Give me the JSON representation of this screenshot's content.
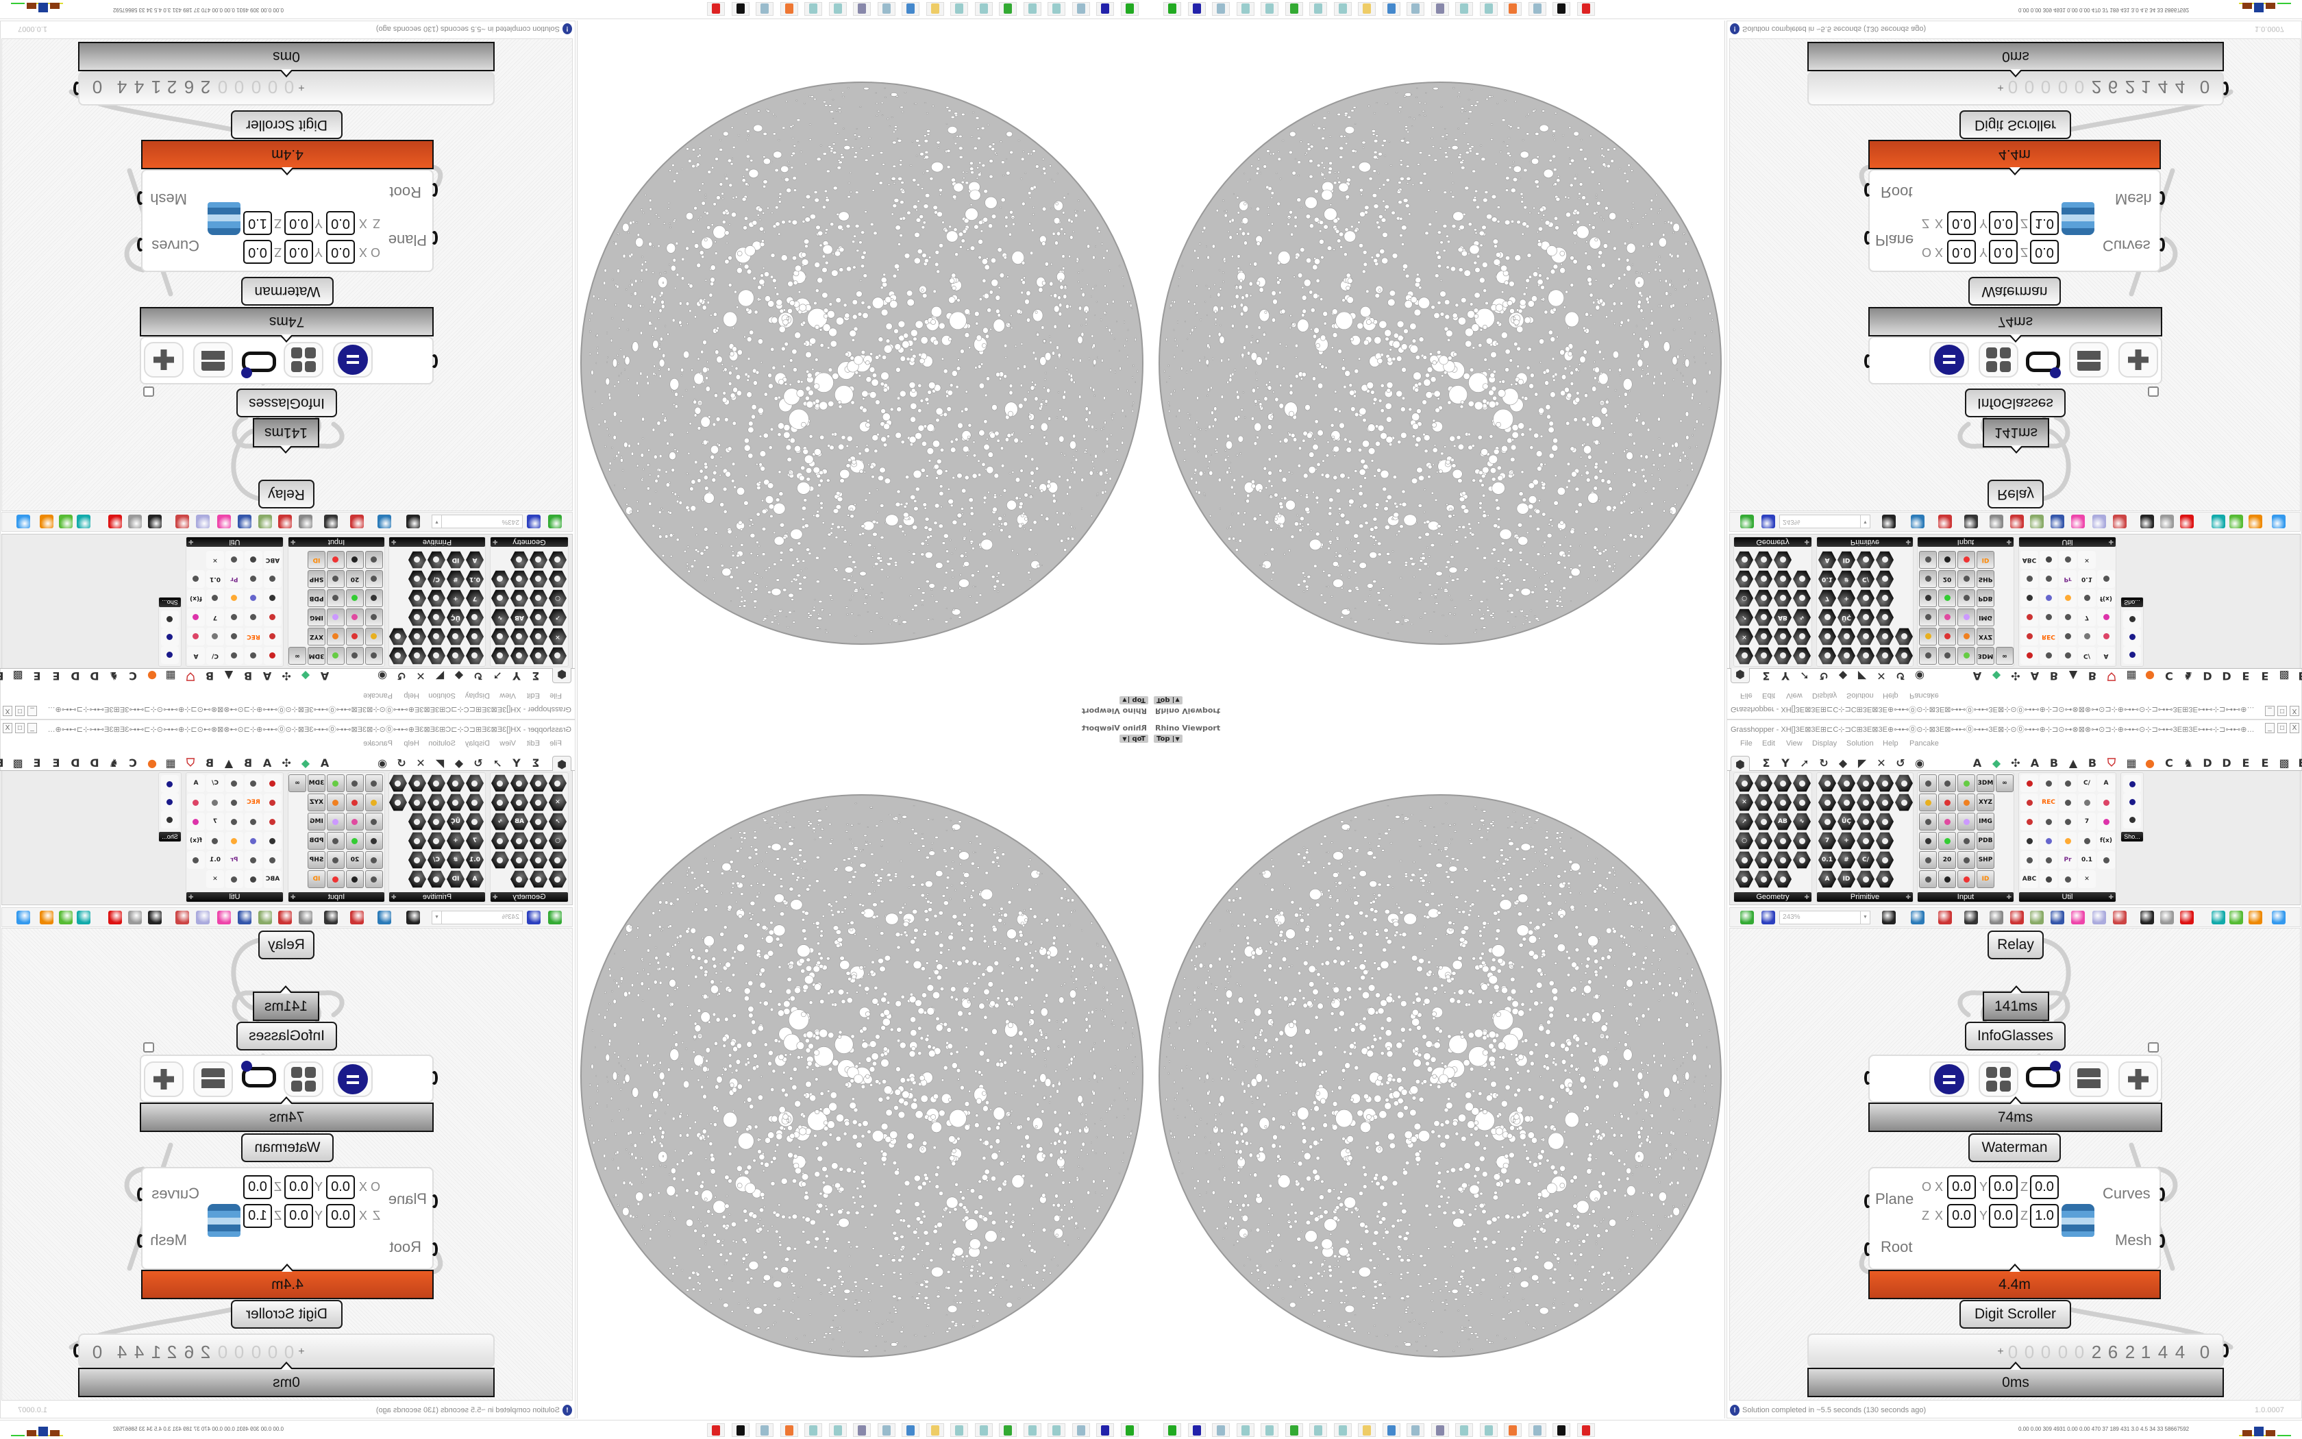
{
  "viewport": {
    "title": "Rhino Viewport",
    "view": "Top"
  },
  "grasshopper": {
    "title": "Grasshopper - XH[]3E⊠3E⊞⊏C⊹⊐C⊞3E⊠3E⊕⊶⊷⓪⊙⊹⊠3E⊠⊶⊷⓪⊶⊷3E⊠⊹⊙⓪⊶⊷⊕⊹⊐⊙⊶⊗⊠⊗⊶⊙⊐⊹⊕⊶⊷⊙⊹⊐⊶⊷3E⊞3E⊶⊷⊹⊐⊶⊷⊕⊹⊐⊙⊶⊗⊠⊗⊶⊙⊐⊹⊕⊶⊷⓪⊙⊹⊠3E⊠⊶⊷⓪...",
    "window_buttons": [
      "_",
      "□",
      "X"
    ],
    "menu": [
      "File",
      "Edit",
      "View",
      "Display",
      "Solution",
      "Help",
      "Pancake"
    ],
    "tabs": [
      {
        "name": "params",
        "glyph": "⬢",
        "selected": true
      },
      {
        "name": "maths",
        "glyph": "Σ"
      },
      {
        "name": "sets",
        "glyph": "Y"
      },
      {
        "name": "vector",
        "glyph": "➚"
      },
      {
        "name": "curve",
        "glyph": "↻"
      },
      {
        "name": "surface",
        "glyph": "◆"
      },
      {
        "name": "mesh",
        "glyph": "◤"
      },
      {
        "name": "intersect",
        "glyph": "✕"
      },
      {
        "name": "transform",
        "glyph": "↺"
      },
      {
        "name": "display",
        "glyph": "◉"
      },
      {
        "name": "addon-a1",
        "glyph": "A"
      },
      {
        "name": "green-gem",
        "glyph": "◆",
        "color": "#3cb878"
      },
      {
        "name": "puzzle",
        "glyph": "✣"
      },
      {
        "name": "addon-a2",
        "glyph": "A"
      },
      {
        "name": "addon-b1",
        "glyph": "B"
      },
      {
        "name": "mountain",
        "glyph": "▲"
      },
      {
        "name": "addon-b2",
        "glyph": "B"
      },
      {
        "name": "shield",
        "glyph": "⛉",
        "color": "#c33"
      },
      {
        "name": "grid",
        "glyph": "▦"
      },
      {
        "name": "orange-circle",
        "glyph": "●",
        "color": "#f07020"
      },
      {
        "name": "addon-c",
        "glyph": "C"
      },
      {
        "name": "rooster",
        "glyph": "♞"
      },
      {
        "name": "addon-d1",
        "glyph": "D"
      },
      {
        "name": "addon-d2",
        "glyph": "D"
      },
      {
        "name": "addon-e1",
        "glyph": "E"
      },
      {
        "name": "addon-e2",
        "glyph": "E"
      },
      {
        "name": "dotted-grid",
        "glyph": "▩"
      },
      {
        "name": "addon-e3",
        "glyph": "E"
      }
    ],
    "panels": [
      {
        "label": "Geometry",
        "style": "hex",
        "cols": 4,
        "icons": [
          {
            "name": "vector"
          },
          {
            "name": "line"
          },
          {
            "name": "point"
          },
          {
            "name": "spiral"
          },
          {
            "name": "delete",
            "text": "✕"
          },
          {
            "name": "plane"
          },
          {
            "name": "box"
          },
          {
            "name": "field"
          },
          {
            "name": "arrow",
            "text": "➚"
          },
          {
            "name": "rhombus"
          },
          {
            "name": "abc-grid",
            "text": "AB"
          },
          {
            "name": "wave",
            "text": "∿"
          },
          {
            "name": "circle",
            "text": "○"
          },
          {
            "name": "cube"
          },
          {
            "name": "group"
          },
          {
            "name": "cluster"
          },
          {
            "name": "brush"
          },
          {
            "name": "mesh"
          },
          {
            "name": "frame"
          },
          {
            "name": "text-shape"
          },
          {
            "name": "ring"
          },
          {
            "name": "sphere"
          },
          {
            "name": "magnet"
          }
        ]
      },
      {
        "label": "Primitive",
        "style": "hex",
        "cols": 5,
        "icons": [
          {
            "name": "boolean"
          },
          {
            "name": "integer"
          },
          {
            "name": "matrix"
          },
          {
            "name": "curve"
          },
          {
            "name": "path"
          },
          {
            "name": "mesh-face"
          },
          {
            "name": "domain"
          },
          {
            "name": "time"
          },
          {
            "name": "surface-param"
          },
          {
            "name": "brep"
          },
          {
            "name": "field-param"
          },
          {
            "name": "ucs",
            "text": "ÜÇ"
          },
          {
            "name": "hatch"
          },
          {
            "name": "pipeline"
          },
          null,
          {
            "name": "number",
            "text": "7"
          },
          {
            "name": "line-param",
            "text": "+"
          },
          {
            "name": "tree"
          },
          {
            "name": "generic"
          },
          null,
          {
            "name": "number-decimal",
            "text": "0.1"
          },
          {
            "name": "grid-param",
            "text": "#"
          },
          {
            "name": "complex",
            "text": "C/"
          },
          {
            "name": "file-path"
          },
          null,
          {
            "name": "text-param",
            "text": "A"
          },
          {
            "name": "guid",
            "text": "ID"
          },
          {
            "name": "sphere-param"
          },
          {
            "name": "shape"
          },
          null
        ]
      },
      {
        "label": "Input",
        "style": "sq",
        "cols": 5,
        "icons": [
          {
            "name": "slider"
          },
          {
            "name": "button"
          },
          {
            "name": "color-swatch",
            "color": "#6c4"
          },
          {
            "name": "import-3dm",
            "text": "3DM"
          },
          {
            "name": "panel",
            "text": "∞"
          },
          {
            "name": "graph",
            "color": "#e8b020"
          },
          {
            "name": "gumball",
            "color": "#d33"
          },
          {
            "name": "t-param",
            "color": "#f08020"
          },
          {
            "name": "xyz",
            "text": "XYZ"
          },
          null,
          {
            "name": "toggle"
          },
          {
            "name": "gradient",
            "color": "#e04aa0"
          },
          {
            "name": "color-wheel",
            "color": "#c9f"
          },
          {
            "name": "image",
            "text": "IMG"
          },
          null,
          {
            "name": "knob",
            "color": "#333"
          },
          {
            "name": "checker",
            "color": "#3c3"
          },
          {
            "name": "graph-mapper"
          },
          {
            "name": "pdb",
            "text": "PDB"
          },
          null,
          {
            "name": "lightning"
          },
          {
            "name": "calendar",
            "text": "20"
          },
          {
            "name": "target"
          },
          {
            "name": "shp",
            "text": "SHP"
          },
          null,
          {
            "name": "value-list"
          },
          {
            "name": "clock",
            "color": "#222"
          },
          {
            "name": "colorbar",
            "color": "#e33"
          },
          {
            "name": "id-tag",
            "text": "ID",
            "color": "#f80"
          }
        ]
      },
      {
        "label": "Util",
        "style": "util",
        "cols": 5,
        "icons": [
          {
            "name": "cherry",
            "color": "#c22"
          },
          {
            "name": "loop",
            "color": "#555"
          },
          {
            "name": "arrow-right"
          },
          {
            "name": "text-c",
            "text": "C/"
          },
          {
            "name": "text-a",
            "text": "A"
          },
          {
            "name": "play",
            "color": "#c33"
          },
          {
            "name": "record",
            "text": "REC",
            "color": "#f60"
          },
          {
            "name": "search"
          },
          {
            "name": "swirl",
            "color": "#777"
          },
          {
            "name": "eraser",
            "color": "#d46"
          },
          {
            "name": "axes",
            "color": "#c33"
          },
          {
            "name": "pencil"
          },
          {
            "name": "timer"
          },
          {
            "name": "number-seven",
            "text": "7"
          },
          {
            "name": "flask",
            "color": "#d3a"
          },
          {
            "name": "tree-image",
            "color": "#333"
          },
          {
            "name": "param-y",
            "color": "#66c"
          },
          {
            "name": "egg",
            "color": "#fa3"
          },
          {
            "name": "wrench"
          },
          {
            "name": "function",
            "text": "f(x)"
          },
          {
            "name": "blob",
            "color": "#555"
          },
          {
            "name": "refresh"
          },
          {
            "name": "premiere",
            "text": "Pr",
            "color": "#7b2d8e"
          },
          {
            "name": "decimal",
            "text": "0.1"
          },
          {
            "name": "palette",
            "color": "#555"
          },
          {
            "name": "abc",
            "text": "ABC"
          },
          {
            "name": "arrow-dark",
            "color": "#444"
          },
          {
            "name": "gauge"
          },
          {
            "name": "close-x",
            "text": "✕"
          }
        ]
      }
    ],
    "show_panel": {
      "label": "Sho...",
      "icons": [
        "infoglasses",
        "infoglasses-alt",
        "presentation"
      ]
    },
    "toolbar": {
      "zoom": "243%",
      "icons": [
        {
          "name": "new-document",
          "color": "#3a3"
        },
        {
          "name": "save",
          "color": "#2b3fbf"
        },
        {
          "name": "zoom-extents",
          "color": "#222"
        },
        {
          "name": "preview-eye",
          "color": "#2a7ab8"
        },
        {
          "name": "sketch-pen",
          "color": "#c33"
        },
        {
          "name": "cluster-io",
          "color": "#333"
        },
        {
          "name": "email",
          "color": "#888"
        },
        {
          "name": "gha",
          "color": "#c33"
        },
        {
          "name": "window",
          "color": "#8a6"
        },
        {
          "name": "search-s",
          "color": "#35a"
        },
        {
          "name": "package",
          "color": "#e4a"
        },
        {
          "name": "bulb",
          "color": "#aad"
        },
        {
          "name": "dna",
          "color": "#c44"
        },
        {
          "name": "shaded-preview",
          "color": "#222"
        },
        {
          "name": "wire-preview",
          "color": "#999"
        },
        {
          "name": "red-gem",
          "color": "#d11"
        },
        {
          "name": "teal-surface",
          "color": "#1aa"
        },
        {
          "name": "green-surface",
          "color": "#5b3"
        },
        {
          "name": "half-sphere",
          "color": "#e80"
        },
        {
          "name": "blue-sphere",
          "color": "#39e"
        }
      ]
    },
    "canvas": {
      "relay": "Relay",
      "infoglasses": {
        "label": "InfoGlasses",
        "time": "141ms"
      },
      "component": {
        "time": "74ms",
        "icons": [
          "minus-circle",
          "grid-four",
          "glasses",
          "drawer",
          "puzzle"
        ]
      },
      "waterman": {
        "label": "Waterman",
        "time": "4.4m",
        "inputs": [
          "Plane",
          "Root"
        ],
        "outputs": [
          "Curves",
          "Mesh"
        ],
        "plane_rows": [
          {
            "label": "O",
            "x": "0.0",
            "y": "0.0",
            "z": "0.0"
          },
          {
            "label": "Z",
            "x": "0.0",
            "y": "0.0",
            "z": "1.0"
          }
        ]
      },
      "digit_scroller": {
        "label": "Digit Scroller",
        "time": "0ms",
        "sign": "+",
        "digits": [
          "0",
          "0",
          "0",
          "0",
          "0",
          "2",
          "6",
          "2",
          "1",
          "4",
          "4",
          "0"
        ]
      }
    },
    "status": {
      "message": "Solution completed in ~5.5 seconds (130 seconds ago)",
      "version": "1.0.0007"
    }
  },
  "taskbar": {
    "icons": [
      {
        "name": "rhino-green",
        "color": "#2a2"
      },
      {
        "name": "floppy-g4",
        "color": "#22a"
      },
      {
        "name": "notepad-1",
        "color": "#9bc"
      },
      {
        "name": "notepad-2",
        "color": "#9cc"
      },
      {
        "name": "notepad-3",
        "color": "#9cc"
      },
      {
        "name": "monitor",
        "color": "#3a3"
      },
      {
        "name": "notepad-4",
        "color": "#9cc"
      },
      {
        "name": "notepad-5",
        "color": "#9cc"
      },
      {
        "name": "folder",
        "color": "#ec6"
      },
      {
        "name": "control-panel",
        "color": "#48c"
      },
      {
        "name": "notepad-6",
        "color": "#9bc"
      },
      {
        "name": "notepad-7",
        "color": "#88a"
      },
      {
        "name": "notepad-8",
        "color": "#9cc"
      },
      {
        "name": "notepad-9",
        "color": "#9cc"
      },
      {
        "name": "firefox",
        "color": "#e73"
      },
      {
        "name": "notepad-10",
        "color": "#9bc"
      },
      {
        "name": "wolf",
        "color": "#111"
      },
      {
        "name": "red-app",
        "color": "#d22"
      }
    ],
    "stats": "0.00 0.00 309 4931 0.00 0.00 470 37 189 431 3.0 4.5 34 33 58667592"
  },
  "colors": {
    "hot_bar": "#e0541f",
    "sphere": "#bdbdbd",
    "accent": "#2a3f9a"
  }
}
